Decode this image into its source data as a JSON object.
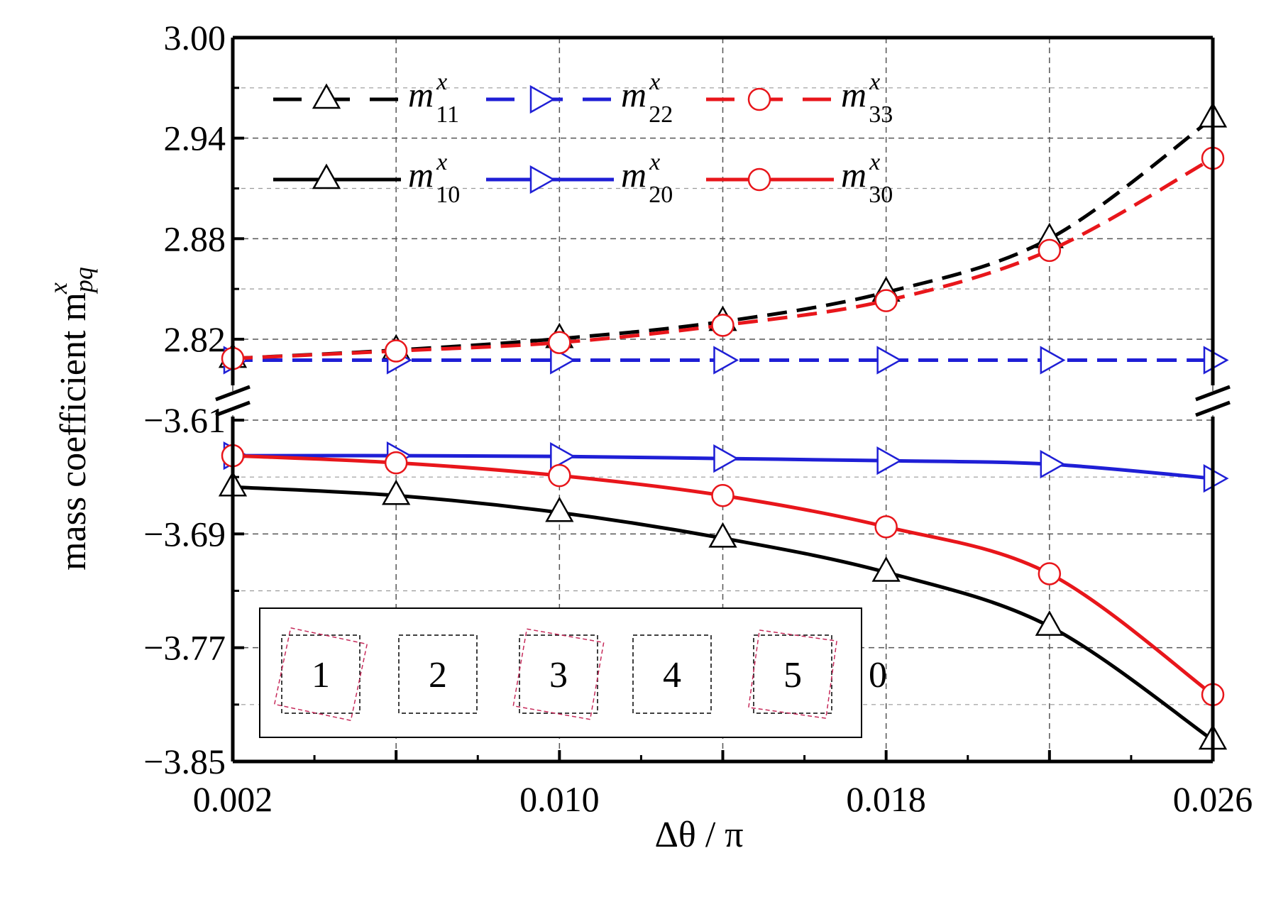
{
  "chart_data": {
    "type": "line",
    "xlabel": "Δθ / π",
    "ylabel": "mass coefficient m",
    "ylabel_sub": "pq",
    "ylabel_sup": "x",
    "x_ticks": [
      "0.002",
      "0.010",
      "0.018",
      "0.026"
    ],
    "xlim": [
      0.002,
      0.026
    ],
    "upper_panel": {
      "ylim": [
        2.795,
        3.0
      ],
      "y_ticks": [
        "2.82",
        "2.88",
        "2.94",
        "3.00"
      ]
    },
    "lower_panel": {
      "ylim": [
        -3.85,
        -3.61
      ],
      "y_ticks": [
        "-3.61",
        "-3.69",
        "-3.77",
        "-3.85"
      ]
    },
    "axis_break": true,
    "grid": true,
    "x": [
      0.002,
      0.006,
      0.01,
      0.014,
      0.018,
      0.022,
      0.026
    ],
    "series": [
      {
        "name": "m",
        "sub": "11",
        "sup": "x",
        "panel": "upper",
        "style": "dashed",
        "marker": "triangle-up",
        "color": "#000000",
        "values": [
          2.8085,
          2.8135,
          2.8203,
          2.8305,
          2.848,
          2.88,
          2.952
        ]
      },
      {
        "name": "m",
        "sub": "22",
        "sup": "x",
        "panel": "upper",
        "style": "dashed",
        "marker": "triangle-right",
        "color": "#1f1fd6",
        "values": [
          2.8075,
          2.8075,
          2.8075,
          2.8075,
          2.8075,
          2.8075,
          2.8075
        ]
      },
      {
        "name": "m",
        "sub": "33",
        "sup": "x",
        "panel": "upper",
        "style": "dashed",
        "marker": "circle",
        "color": "#e8161b",
        "values": [
          2.8085,
          2.813,
          2.818,
          2.8283,
          2.843,
          2.873,
          2.928
        ]
      },
      {
        "name": "m",
        "sub": "10",
        "sup": "x",
        "panel": "lower",
        "style": "solid",
        "marker": "triangle-up",
        "color": "#000000",
        "values": [
          -3.657,
          -3.663,
          -3.675,
          -3.693,
          -3.717,
          -3.755,
          -3.835
        ]
      },
      {
        "name": "m",
        "sub": "20",
        "sup": "x",
        "panel": "lower",
        "style": "solid",
        "marker": "triangle-right",
        "color": "#1f1fd6",
        "values": [
          -3.635,
          -3.635,
          -3.6355,
          -3.637,
          -3.6385,
          -3.641,
          -3.651
        ]
      },
      {
        "name": "m",
        "sub": "30",
        "sup": "x",
        "panel": "lower",
        "style": "solid",
        "marker": "circle",
        "color": "#e8161b",
        "values": [
          -3.635,
          -3.64,
          -3.649,
          -3.663,
          -3.685,
          -3.718,
          -3.803
        ]
      }
    ],
    "inset": {
      "labels": [
        "1",
        "2",
        "3",
        "4",
        "5"
      ],
      "trailing_label": "0"
    },
    "legend_position": "top-left"
  }
}
